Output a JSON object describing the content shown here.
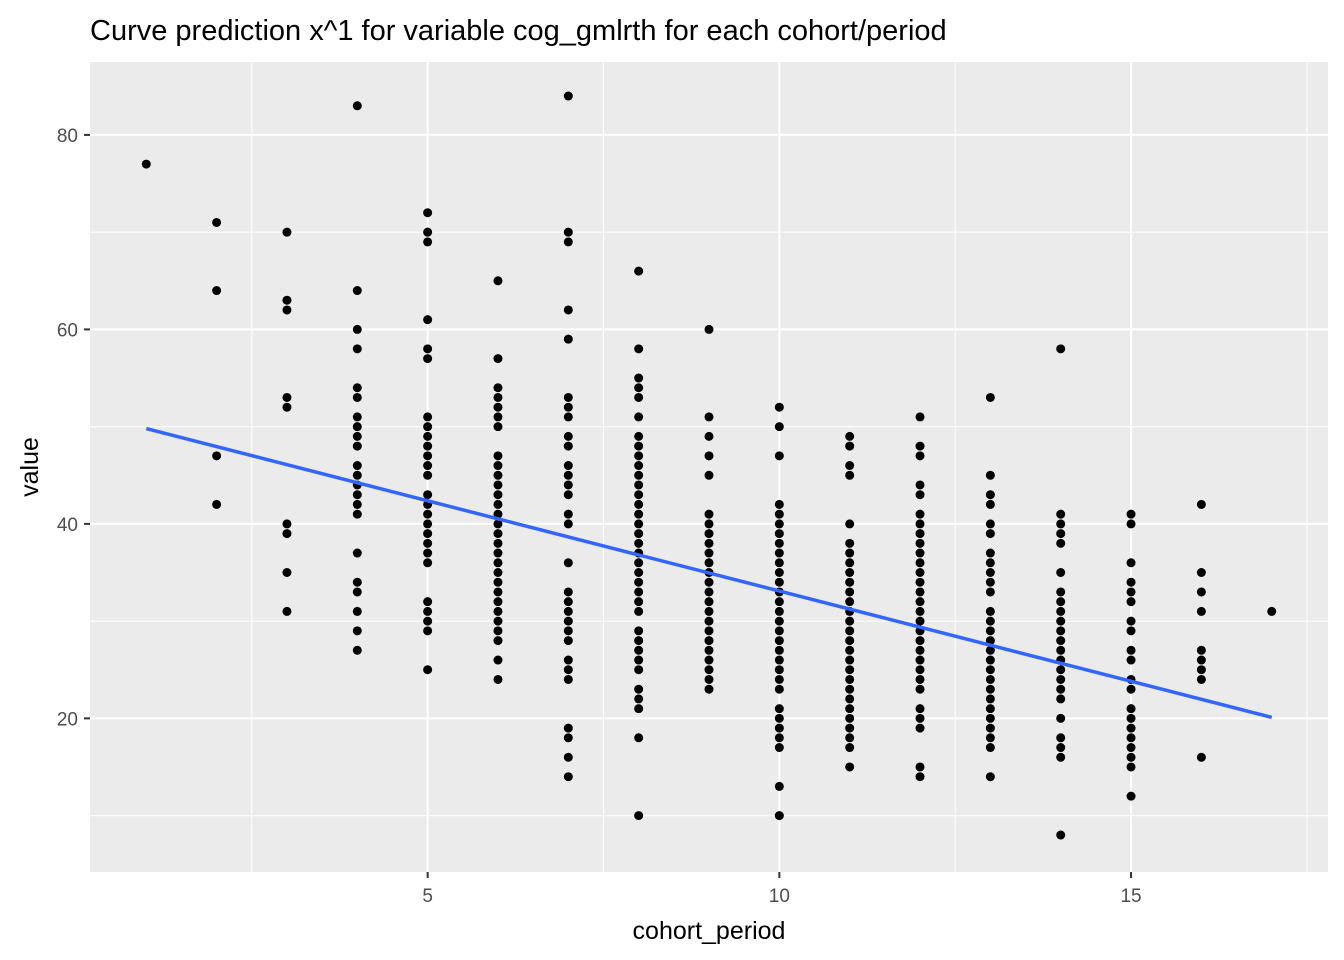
{
  "chart_data": {
    "type": "scatter",
    "title": "Curve prediction x^1  for variable cog_gmlrth for each cohort/period",
    "xlabel": "cohort_period",
    "ylabel": "value",
    "xlim": [
      0.2,
      17.8
    ],
    "ylim": [
      4.2,
      87.5
    ],
    "x_ticks": [
      5,
      10,
      15
    ],
    "y_ticks": [
      20,
      40,
      60,
      80
    ],
    "x_tick_labels": [
      "5",
      "10",
      "15"
    ],
    "y_tick_labels": [
      "20",
      "40",
      "60",
      "80"
    ],
    "grid": true,
    "legend": "none",
    "colors": {
      "panel": "#ebebeb",
      "grid": "#ffffff",
      "point": "#000000",
      "line": "#3366ff"
    },
    "series": [
      {
        "type": "points",
        "groups": [
          {
            "x": 1,
            "y": [
              77
            ]
          },
          {
            "x": 2,
            "y": [
              71,
              64,
              47,
              42
            ]
          },
          {
            "x": 3,
            "y": [
              70,
              63,
              62,
              53,
              52,
              40,
              39,
              35,
              31
            ]
          },
          {
            "x": 4,
            "y": [
              83,
              64,
              60,
              58,
              54,
              53,
              51,
              50,
              49,
              48,
              46,
              45,
              44,
              43,
              42,
              41,
              37,
              34,
              33,
              31,
              29,
              27
            ]
          },
          {
            "x": 5,
            "y": [
              72,
              70,
              69,
              61,
              58,
              57,
              51,
              50,
              49,
              48,
              47,
              46,
              45,
              43,
              42,
              41,
              40,
              39,
              38,
              37,
              36,
              32,
              31,
              30,
              29,
              25
            ]
          },
          {
            "x": 6,
            "y": [
              65,
              57,
              54,
              53,
              52,
              51,
              50,
              47,
              46,
              45,
              44,
              43,
              42,
              41,
              40,
              39,
              38,
              37,
              36,
              35,
              34,
              33,
              32,
              31,
              30,
              29,
              28,
              26,
              24
            ]
          },
          {
            "x": 7,
            "y": [
              84,
              70,
              69,
              62,
              59,
              53,
              52,
              51,
              49,
              48,
              46,
              45,
              44,
              43,
              41,
              40,
              36,
              33,
              32,
              31,
              30,
              29,
              28,
              26,
              25,
              24,
              19,
              18,
              16,
              14
            ]
          },
          {
            "x": 8,
            "y": [
              66,
              58,
              55,
              54,
              53,
              51,
              49,
              48,
              47,
              46,
              45,
              44,
              43,
              42,
              41,
              40,
              39,
              38,
              37,
              36,
              35,
              34,
              33,
              32,
              31,
              29,
              28,
              27,
              26,
              25,
              23,
              22,
              21,
              18,
              10
            ]
          },
          {
            "x": 9,
            "y": [
              60,
              51,
              49,
              47,
              45,
              41,
              40,
              39,
              38,
              37,
              36,
              35,
              34,
              33,
              32,
              31,
              30,
              29,
              28,
              27,
              26,
              25,
              24,
              23
            ]
          },
          {
            "x": 10,
            "y": [
              52,
              50,
              47,
              42,
              41,
              40,
              39,
              38,
              37,
              36,
              35,
              34,
              33,
              32,
              31,
              30,
              29,
              28,
              27,
              26,
              25,
              24,
              23,
              21,
              20,
              19,
              18,
              17,
              13,
              10
            ]
          },
          {
            "x": 11,
            "y": [
              49,
              48,
              46,
              45,
              40,
              38,
              37,
              36,
              35,
              34,
              33,
              32,
              31,
              30,
              29,
              28,
              27,
              26,
              25,
              24,
              23,
              22,
              21,
              20,
              19,
              18,
              17,
              15
            ]
          },
          {
            "x": 12,
            "y": [
              51,
              48,
              47,
              44,
              43,
              41,
              40,
              39,
              38,
              37,
              36,
              35,
              34,
              33,
              32,
              31,
              30,
              29,
              28,
              27,
              26,
              25,
              24,
              23,
              21,
              20,
              19,
              15,
              14
            ]
          },
          {
            "x": 13,
            "y": [
              53,
              45,
              43,
              42,
              40,
              39,
              37,
              36,
              35,
              34,
              33,
              31,
              30,
              29,
              28,
              27,
              26,
              25,
              24,
              23,
              22,
              21,
              20,
              19,
              18,
              17,
              14
            ]
          },
          {
            "x": 14,
            "y": [
              58,
              41,
              40,
              39,
              38,
              35,
              33,
              32,
              31,
              30,
              29,
              28,
              27,
              26,
              25,
              24,
              23,
              22,
              20,
              18,
              17,
              16,
              8
            ]
          },
          {
            "x": 15,
            "y": [
              41,
              40,
              36,
              34,
              33,
              32,
              30,
              29,
              27,
              26,
              24,
              23,
              21,
              20,
              19,
              18,
              17,
              16,
              15,
              12
            ]
          },
          {
            "x": 16,
            "y": [
              42,
              35,
              33,
              31,
              27,
              26,
              25,
              24,
              16
            ]
          },
          {
            "x": 17,
            "y": [
              31
            ]
          }
        ]
      },
      {
        "type": "line",
        "x": [
          1,
          17
        ],
        "y": [
          49.8,
          20.1
        ]
      }
    ]
  }
}
